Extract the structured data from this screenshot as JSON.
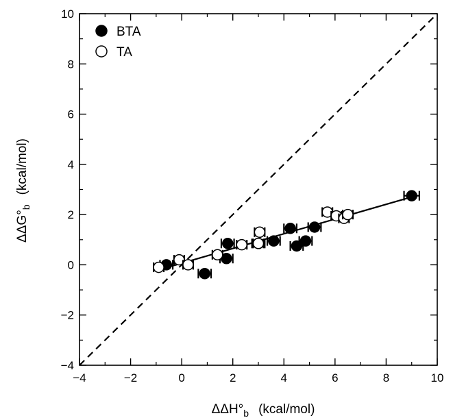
{
  "chart_data": {
    "type": "scatter",
    "xlabel": {
      "main": "ΔΔH°",
      "sub": "b",
      "unit": "(kcal/mol)"
    },
    "ylabel": {
      "main": "ΔΔG°",
      "sub": "b",
      "unit": "(kcal/mol)"
    },
    "xlim": [
      -4,
      10
    ],
    "ylim": [
      -4,
      10
    ],
    "xticks": [
      "−4",
      "−2",
      "0",
      "2",
      "4",
      "6",
      "8",
      "10"
    ],
    "yticks": [
      "−4",
      "−2",
      "0",
      "2",
      "4",
      "6",
      "8",
      "10"
    ],
    "grid": false,
    "legend_position": "top-left",
    "series": [
      {
        "name": "BTA",
        "marker": "filled-circle",
        "color": "#000000",
        "points": [
          {
            "x": -0.6,
            "y": 0.0,
            "xerr": 0.25
          },
          {
            "x": 0.9,
            "y": -0.35,
            "xerr": 0.25
          },
          {
            "x": 1.75,
            "y": 0.25,
            "xerr": 0.25
          },
          {
            "x": 1.8,
            "y": 0.85,
            "xerr": 0.25
          },
          {
            "x": 3.0,
            "y": 0.85,
            "xerr": 0.25
          },
          {
            "x": 3.6,
            "y": 0.95,
            "xerr": 0.25
          },
          {
            "x": 4.25,
            "y": 1.45,
            "xerr": 0.25
          },
          {
            "x": 4.5,
            "y": 0.75,
            "xerr": 0.25
          },
          {
            "x": 4.85,
            "y": 0.95,
            "xerr": 0.25
          },
          {
            "x": 5.2,
            "y": 1.5,
            "xerr": 0.25
          },
          {
            "x": 9.0,
            "y": 2.75,
            "xerr": 0.3
          }
        ]
      },
      {
        "name": "TA",
        "marker": "open-circle",
        "color": "#000000",
        "points": [
          {
            "x": -0.9,
            "y": -0.1,
            "xerr": 0.2
          },
          {
            "x": -0.1,
            "y": 0.2,
            "xerr": 0.2
          },
          {
            "x": 0.25,
            "y": 0.0,
            "xerr": 0.2
          },
          {
            "x": 1.4,
            "y": 0.4,
            "xerr": 0.2
          },
          {
            "x": 2.35,
            "y": 0.8,
            "xerr": 0.2
          },
          {
            "x": 3.0,
            "y": 0.85,
            "xerr": 0.2
          },
          {
            "x": 3.05,
            "y": 1.3,
            "xerr": 0.2
          },
          {
            "x": 5.7,
            "y": 2.1,
            "xerr": 0.2
          },
          {
            "x": 6.05,
            "y": 1.95,
            "xerr": 0.2
          },
          {
            "x": 6.35,
            "y": 1.85,
            "xerr": 0.2
          },
          {
            "x": 6.5,
            "y": 2.0,
            "xerr": 0.2
          }
        ]
      }
    ],
    "lines": [
      {
        "kind": "fit",
        "style": "solid",
        "x": [
          -0.9,
          9.0
        ],
        "y": [
          -0.2,
          2.7
        ]
      },
      {
        "kind": "identity",
        "style": "dashed",
        "x": [
          -4,
          10
        ],
        "y": [
          -4,
          10
        ]
      }
    ]
  }
}
